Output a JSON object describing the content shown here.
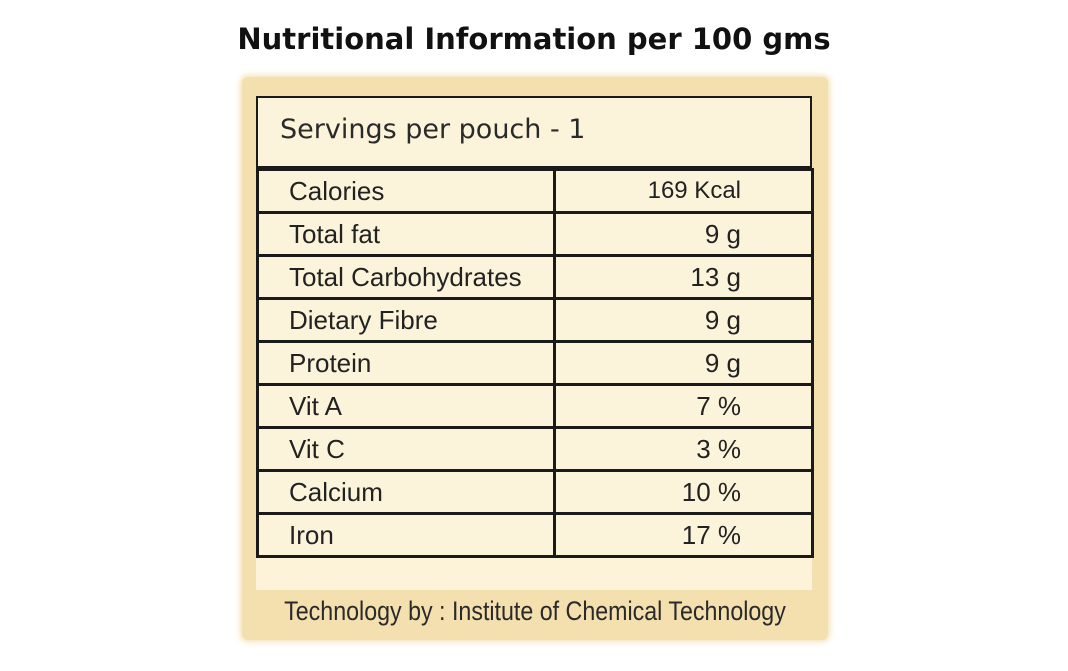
{
  "title": "Nutritional Information per 100 gms",
  "servings": "Servings per pouch - 1",
  "nutrients": [
    {
      "name": "Calories",
      "value": "169 Kcal"
    },
    {
      "name": "Total fat",
      "value": "9 g"
    },
    {
      "name": "Total Carbohydrates",
      "value": "13 g"
    },
    {
      "name": "Dietary Fibre",
      "value": "9 g"
    },
    {
      "name": "Protein",
      "value": "9 g"
    },
    {
      "name": "Vit A",
      "value": "7  %"
    },
    {
      "name": "Vit C",
      "value": "3  %"
    },
    {
      "name": "Calcium",
      "value": "10  %"
    },
    {
      "name": "Iron",
      "value": "17  %"
    }
  ],
  "footer": "Technology by : Institute of Chemical Technology",
  "colors": {
    "panel_border": "#f4dfae",
    "panel_fill": "#fcf4da",
    "lines": "#1a1a1a"
  }
}
